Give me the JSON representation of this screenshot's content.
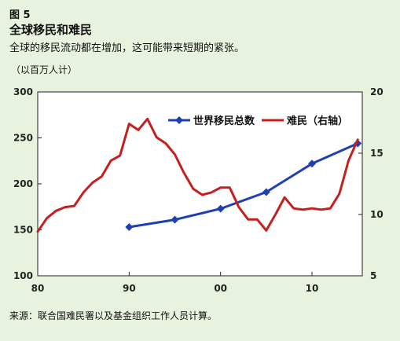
{
  "figure": {
    "number": "图 5",
    "title": "全球移民和难民",
    "subtitle": "全球的移民流动都在增加，这可能带来短期的紧张。",
    "unit": "（以百万人计）",
    "source": "来源：联合国难民署以及基金组织工作人员计算。"
  },
  "chart_data": {
    "type": "line",
    "x_ticks": [
      "80",
      "90",
      "00",
      "10"
    ],
    "x_range": [
      1980,
      2015.5
    ],
    "y_left": {
      "range": [
        100,
        300
      ],
      "ticks": [
        100,
        150,
        200,
        250,
        300
      ]
    },
    "y_right": {
      "range": [
        5,
        20
      ],
      "ticks": [
        5,
        10,
        15,
        20
      ]
    },
    "grid": false,
    "legend_position": "top-right",
    "series": [
      {
        "name": "世界移民总数",
        "axis": "left",
        "color": "#1f3fb4",
        "marker": "diamond",
        "x": [
          1990,
          1995,
          2000,
          2005,
          2010,
          2015
        ],
        "y": [
          153,
          161,
          173,
          191,
          222,
          244
        ]
      },
      {
        "name": "难民（右轴）",
        "axis": "right",
        "color": "#c61f1f",
        "marker": "none",
        "x": [
          1980,
          1981,
          1982,
          1983,
          1984,
          1985,
          1986,
          1987,
          1988,
          1989,
          1990,
          1991,
          1992,
          1993,
          1994,
          1995,
          1996,
          1997,
          1998,
          1999,
          2000,
          2001,
          2002,
          2003,
          2004,
          2005,
          2006,
          2007,
          2008,
          2009,
          2010,
          2011,
          2012,
          2013,
          2014,
          2015
        ],
        "y": [
          8.6,
          9.7,
          10.3,
          10.6,
          10.7,
          11.8,
          12.6,
          13.1,
          14.4,
          14.8,
          17.4,
          16.9,
          17.8,
          16.3,
          15.8,
          14.9,
          13.4,
          12.1,
          11.6,
          11.8,
          12.2,
          12.2,
          10.6,
          9.6,
          9.6,
          8.7,
          10.0,
          11.4,
          10.5,
          10.4,
          10.5,
          10.4,
          10.5,
          11.7,
          14.4,
          16.1
        ]
      }
    ]
  }
}
